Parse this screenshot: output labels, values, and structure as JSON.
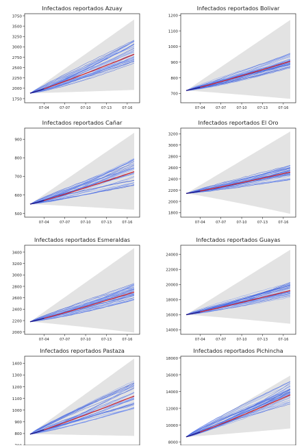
{
  "chart_data": [
    {
      "type": "line",
      "title": "Infectados reportados Azuay",
      "xticks": [
        "07-04",
        "07-07",
        "07-10",
        "07-13",
        "07-16"
      ],
      "yticks": [
        1750,
        2000,
        2250,
        2500,
        2750,
        3000,
        3250,
        3500,
        3750
      ],
      "ylim": [
        1650,
        3800
      ],
      "y_start": 1880,
      "mean_end": 2820,
      "band_upper_end": 3660,
      "band_lower_end": 1960,
      "ensemble_end_low": 2580,
      "ensemble_end_high": 3160
    },
    {
      "type": "line",
      "title": "Infectados reportados Bolivar",
      "xticks": [
        "07-04",
        "07-07",
        "07-10",
        "07-13",
        "07-16"
      ],
      "yticks": [
        700,
        800,
        900,
        1000,
        1100,
        1200
      ],
      "ylim": [
        640,
        1210
      ],
      "y_start": 718,
      "mean_end": 905,
      "band_upper_end": 1170,
      "band_lower_end": 665,
      "ensemble_end_low": 860,
      "ensemble_end_high": 960
    },
    {
      "type": "line",
      "title": "Infectados reportados Cañar",
      "xticks": [
        "07-04",
        "07-07",
        "07-10",
        "07-13",
        "07-16"
      ],
      "yticks": [
        500,
        600,
        700,
        800,
        900
      ],
      "ylim": [
        480,
        960
      ],
      "y_start": 550,
      "mean_end": 725,
      "band_upper_end": 935,
      "band_lower_end": 520,
      "ensemble_end_low": 650,
      "ensemble_end_high": 800
    },
    {
      "type": "line",
      "title": "Infectados reportados El Oro",
      "xticks": [
        "07-04",
        "07-07",
        "07-10",
        "07-13",
        "07-16"
      ],
      "yticks": [
        1800,
        2000,
        2200,
        2400,
        2600,
        2800,
        3000,
        3200
      ],
      "ylim": [
        1720,
        3300
      ],
      "y_start": 2140,
      "mean_end": 2520,
      "band_upper_end": 3240,
      "band_lower_end": 1780,
      "ensemble_end_low": 2380,
      "ensemble_end_high": 2640
    },
    {
      "type": "line",
      "title": "Infectados reportados Esmeraldas",
      "xticks": [
        "07-04",
        "07-07",
        "07-10",
        "07-13",
        "07-16"
      ],
      "yticks": [
        2000,
        2200,
        2400,
        2600,
        2800,
        3000,
        3200,
        3400
      ],
      "ylim": [
        1960,
        3520
      ],
      "y_start": 2180,
      "mean_end": 2700,
      "band_upper_end": 3470,
      "band_lower_end": 1990,
      "ensemble_end_low": 2560,
      "ensemble_end_high": 2860
    },
    {
      "type": "line",
      "title": "Infectados reportados Guayas",
      "xticks": [
        "07-04",
        "07-07",
        "07-10",
        "07-13",
        "07-16"
      ],
      "yticks": [
        14000,
        16000,
        18000,
        20000,
        22000,
        24000
      ],
      "ylim": [
        13400,
        25200
      ],
      "y_start": 16000,
      "mean_end": 19200,
      "band_upper_end": 24600,
      "band_lower_end": 14800,
      "ensemble_end_low": 18300,
      "ensemble_end_high": 20300
    },
    {
      "type": "line",
      "title": "Infectados reportados Pastaza",
      "xticks": [
        "07-04",
        "07-07",
        "07-10",
        "07-13",
        "07-16"
      ],
      "yticks": [
        700,
        800,
        900,
        1000,
        1100,
        1200,
        1300,
        1400
      ],
      "ylim": [
        700,
        1460
      ],
      "y_start": 795,
      "mean_end": 1120,
      "band_upper_end": 1440,
      "band_lower_end": 780,
      "ensemble_end_low": 1010,
      "ensemble_end_high": 1260
    },
    {
      "type": "line",
      "title": "Infectados reportados Pichincha",
      "xticks": [
        "07-04",
        "07-07",
        "07-10",
        "07-13",
        "07-16"
      ],
      "yticks": [
        8000,
        10000,
        12000,
        14000,
        16000,
        18000
      ],
      "ylim": [
        7600,
        18200
      ],
      "y_start": 8600,
      "mean_end": 13600,
      "band_upper_end": 15900,
      "band_lower_end": 9600,
      "ensemble_end_low": 12400,
      "ensemble_end_high": 15200
    }
  ]
}
